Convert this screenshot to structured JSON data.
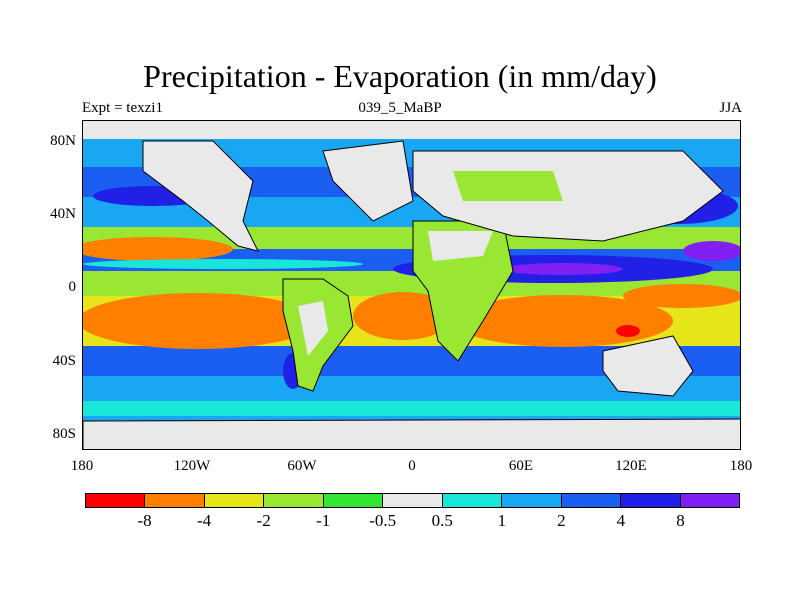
{
  "title": "Precipitation - Evaporation (in mm/day)",
  "subtitle_left": "Expt = texzi1",
  "subtitle_center": "039_5_MaBP",
  "subtitle_right": "JJA",
  "lat_ticks": [
    "80N",
    "40N",
    "0",
    "40S",
    "80S"
  ],
  "lon_ticks": [
    "180",
    "120W",
    "60W",
    "0",
    "60E",
    "120E",
    "180"
  ],
  "colorbar": {
    "labels": [
      "-8",
      "-4",
      "-2",
      "-1",
      "-0.5",
      "0.5",
      "1",
      "2",
      "4",
      "8"
    ],
    "colors": [
      "#ff0000",
      "#ff7f00",
      "#e5e51a",
      "#99e633",
      "#33e633",
      "#e9e9e9",
      "#19e6d9",
      "#19a6f2",
      "#1a5ff2",
      "#2020e6",
      "#8020f2"
    ]
  }
}
